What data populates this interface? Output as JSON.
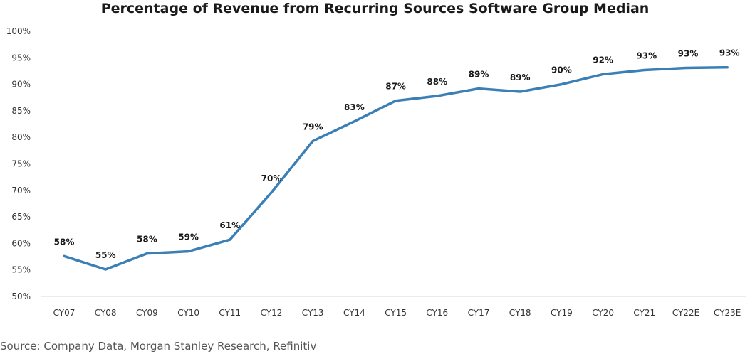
{
  "chart_data": {
    "type": "line",
    "title": "Percentage of Revenue from Recurring Sources Software Group Median",
    "categories": [
      "CY07",
      "CY08",
      "CY09",
      "CY10",
      "CY11",
      "CY12",
      "CY13",
      "CY14",
      "CY15",
      "CY16",
      "CY17",
      "CY18",
      "CY19",
      "CY20",
      "CY21",
      "CY22E",
      "CY23E"
    ],
    "series": [
      {
        "values": [
          57.6,
          55.1,
          58.1,
          58.5,
          60.7,
          69.6,
          79.3,
          83.0,
          86.9,
          87.8,
          89.2,
          88.6,
          90.0,
          91.9,
          92.7,
          93.1,
          93.2
        ],
        "data_labels": [
          "58%",
          "55%",
          "58%",
          "59%",
          "61%",
          "70%",
          "79%",
          "83%",
          "87%",
          "88%",
          "89%",
          "89%",
          "90%",
          "92%",
          "93%",
          "93%",
          "93%"
        ],
        "color": "#3a7fb5"
      }
    ],
    "ylim": [
      50,
      100
    ],
    "yticks": [
      50,
      55,
      60,
      65,
      70,
      75,
      80,
      85,
      90,
      95,
      100
    ],
    "ytick_labels": [
      "50%",
      "55%",
      "60%",
      "65%",
      "70%",
      "75%",
      "80%",
      "85%",
      "90%",
      "95%",
      "100%"
    ],
    "xlabel": "",
    "ylabel": "",
    "grid": false,
    "legend": "none"
  },
  "source": "Source: Company Data, Morgan Stanley Research, Refinitiv",
  "colors": {
    "line": "#3a7fb5",
    "axis": "#d9d9d9",
    "text": "#1a1a1a"
  }
}
